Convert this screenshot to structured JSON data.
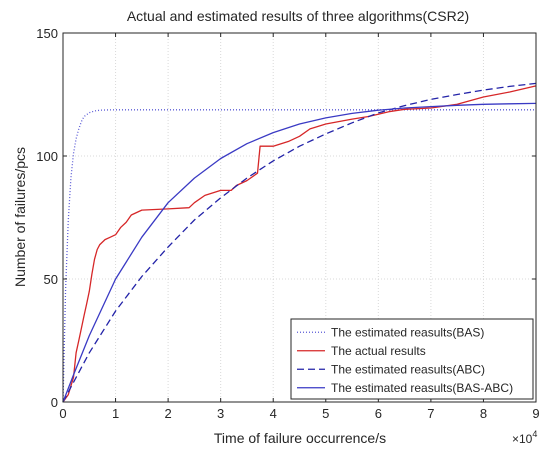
{
  "chart_data": {
    "type": "line",
    "title": "Actual and estimated results of three algorithms(CSR2)",
    "xlabel": "Time of failure occurrence/s",
    "ylabel": "Number of failures/pcs",
    "x_exponent_label": "×10",
    "x_exponent_power": "4",
    "xlim": [
      0,
      90000
    ],
    "ylim": [
      0,
      150
    ],
    "x_ticks": [
      {
        "value": 0,
        "label": "0"
      },
      {
        "value": 10000,
        "label": "1"
      },
      {
        "value": 20000,
        "label": "2"
      },
      {
        "value": 30000,
        "label": "3"
      },
      {
        "value": 40000,
        "label": "4"
      },
      {
        "value": 50000,
        "label": "5"
      },
      {
        "value": 60000,
        "label": "6"
      },
      {
        "value": 70000,
        "label": "7"
      },
      {
        "value": 80000,
        "label": "8"
      },
      {
        "value": 90000,
        "label": "9"
      }
    ],
    "y_ticks": [
      {
        "value": 0,
        "label": "0"
      },
      {
        "value": 50,
        "label": "50"
      },
      {
        "value": 100,
        "label": "100"
      },
      {
        "value": 150,
        "label": "150"
      }
    ],
    "grid": true,
    "legend_position": "bottom-right",
    "series": [
      {
        "name": "The estimated reasults(BAS)",
        "color": "#5a5ad6",
        "dash": "dotted",
        "x": [
          0,
          500,
          1000,
          1500,
          2000,
          2500,
          3000,
          3500,
          4000,
          5000,
          6000,
          7000,
          8000,
          10000,
          15000,
          20000,
          30000,
          40000,
          50000,
          60000,
          70000,
          80000,
          90000
        ],
        "y": [
          0,
          46,
          74,
          91,
          101,
          107,
          111,
          114,
          116,
          117.6,
          118.3,
          118.6,
          118.7,
          118.8,
          118.8,
          118.8,
          118.8,
          118.8,
          118.8,
          118.8,
          118.8,
          118.8,
          118.8
        ]
      },
      {
        "name": "The actual results",
        "color": "#d62728",
        "dash": "solid",
        "x": [
          0,
          1000,
          2000,
          2500,
          3000,
          3500,
          4000,
          4500,
          5000,
          5500,
          6000,
          6500,
          7000,
          7500,
          8000,
          9000,
          10000,
          11000,
          12000,
          13000,
          15000,
          20000,
          24000,
          25000,
          27000,
          30000,
          32000,
          33000,
          35000,
          37000,
          37500,
          40000,
          43000,
          45000,
          47000,
          50000,
          55000,
          58000,
          60000,
          62000,
          65000,
          70000,
          75000,
          80000,
          85000,
          90000
        ],
        "y": [
          0,
          3,
          10,
          20,
          25,
          30,
          35,
          40,
          45,
          52,
          58,
          62,
          64,
          65,
          66,
          67,
          68,
          71,
          73,
          76,
          78,
          78.5,
          79,
          81,
          84,
          86,
          86,
          88,
          90,
          93,
          104,
          104,
          106,
          108,
          111,
          113,
          115,
          116,
          117,
          118,
          119,
          119.5,
          121,
          124,
          126,
          128.5
        ]
      },
      {
        "name": "The estimated reasults(ABC)",
        "color": "#2323a8",
        "dash": "dashed",
        "x": [
          0,
          2000,
          5000,
          10000,
          15000,
          20000,
          25000,
          30000,
          35000,
          40000,
          45000,
          50000,
          55000,
          60000,
          65000,
          70000,
          75000,
          80000,
          85000,
          90000
        ],
        "y": [
          0,
          8,
          20,
          37,
          51,
          63,
          74,
          83,
          91,
          98,
          104,
          109,
          113.5,
          117.5,
          120.5,
          123,
          125,
          126.8,
          128.3,
          129.5
        ]
      },
      {
        "name": "The estimated reasults(BAS-ABC)",
        "color": "#3a3ac4",
        "dash": "solid",
        "x": [
          0,
          2000,
          5000,
          10000,
          15000,
          20000,
          25000,
          30000,
          35000,
          40000,
          45000,
          50000,
          55000,
          60000,
          65000,
          70000,
          75000,
          80000,
          85000,
          90000
        ],
        "y": [
          0,
          11,
          27,
          50,
          67,
          81,
          91,
          99,
          105,
          109.5,
          113,
          115.5,
          117.3,
          118.6,
          119.5,
          120.1,
          120.6,
          121,
          121.2,
          121.4
        ]
      }
    ]
  }
}
